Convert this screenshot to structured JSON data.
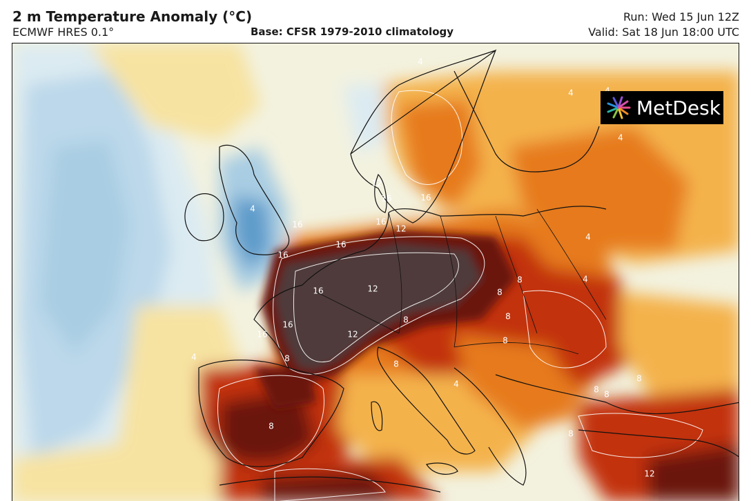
{
  "header": {
    "title": "2 m Temperature Anomaly (°C)",
    "model": "ECMWF HRES 0.1°",
    "base": "Base: CFSR 1979-2010 climatology",
    "run": "Run: Wed 15 Jun 12Z",
    "valid": "Valid: Sat 18 Jun 18:00 UTC"
  },
  "logo": {
    "text": "MetDesk",
    "icon": "starburst-logo-icon"
  },
  "colors": {
    "cold_deep": "#5f9ccb",
    "cold": "#a9cde3",
    "cool": "#dcebf2",
    "neutral": "#f3f2df",
    "warm_light": "#f7e3a1",
    "warm": "#f4b24c",
    "hot": "#e67a1f",
    "very_hot": "#c2320f",
    "extreme": "#6b1408",
    "max": "#4f3a3a"
  },
  "contour_labels": [
    {
      "text": "4"
    },
    {
      "text": "4"
    },
    {
      "text": "4"
    },
    {
      "text": "4"
    },
    {
      "text": "4"
    },
    {
      "text": "4"
    },
    {
      "text": "4"
    },
    {
      "text": "4"
    },
    {
      "text": "4"
    },
    {
      "text": "8"
    },
    {
      "text": "8"
    },
    {
      "text": "8"
    },
    {
      "text": "8"
    },
    {
      "text": "8"
    },
    {
      "text": "8"
    },
    {
      "text": "8"
    },
    {
      "text": "8"
    },
    {
      "text": "8"
    },
    {
      "text": "8"
    },
    {
      "text": "8"
    },
    {
      "text": "8"
    },
    {
      "text": "12"
    },
    {
      "text": "12"
    },
    {
      "text": "12"
    },
    {
      "text": "12"
    },
    {
      "text": "12"
    },
    {
      "text": "16"
    },
    {
      "text": "16"
    },
    {
      "text": "16"
    },
    {
      "text": "16"
    },
    {
      "text": "16"
    },
    {
      "text": "16"
    },
    {
      "text": "16"
    },
    {
      "text": "16"
    },
    {
      "text": "16"
    }
  ]
}
